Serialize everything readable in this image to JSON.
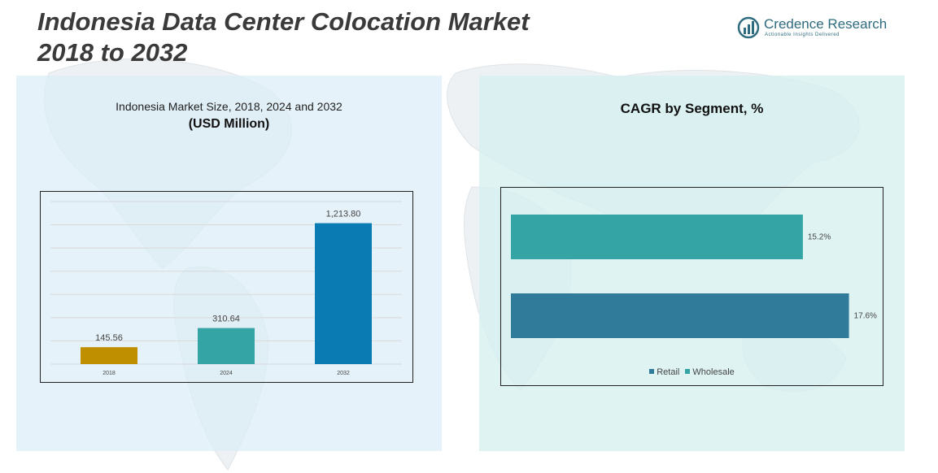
{
  "page": {
    "title_line1": "Indonesia Data Center Colocation Market",
    "title_line2": "2018 to 2032"
  },
  "brand": {
    "name": "Credence Research",
    "tagline": "Actionable Insights Delivered",
    "logo_color": "#2e6b7e"
  },
  "chart_data": [
    {
      "type": "bar",
      "title": "Indonesia Market Size, 2018, 2024 and 2032",
      "unit": "(USD Million)",
      "categories": [
        "2018",
        "2024",
        "2032"
      ],
      "values": [
        145.56,
        310.64,
        1213.8
      ],
      "value_labels": [
        "145.56",
        "310.64",
        "1,213.80"
      ],
      "colors": [
        "#bf8f00",
        "#34a4a4",
        "#0a7cb3"
      ],
      "ylim": [
        0,
        1400
      ],
      "grid": true,
      "xlabel": "",
      "ylabel": ""
    },
    {
      "type": "bar",
      "orientation": "horizontal",
      "title": "CAGR by Segment, %",
      "categories": [
        "Wholesale",
        "Retail"
      ],
      "values": [
        15.2,
        17.6
      ],
      "value_labels": [
        "15.2%",
        "17.6%"
      ],
      "colors": {
        "Retail": "#2f7b99",
        "Wholesale": "#34a4a4"
      },
      "xlim": [
        0,
        18
      ],
      "legend": [
        "Retail",
        "Wholesale"
      ],
      "legend_position": "bottom"
    }
  ]
}
